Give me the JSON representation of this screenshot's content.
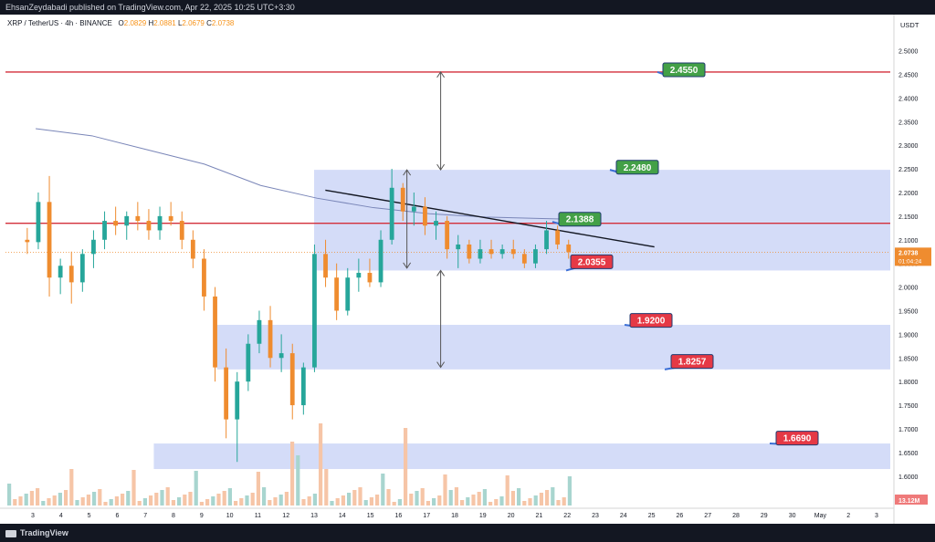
{
  "header": {
    "published_text": "EhsanZeydabadi published on TradingView.com, Apr 22, 2025 10:25 UTC+3:30"
  },
  "footer": {
    "brand": "TradingView"
  },
  "symbol": {
    "name": "XRP / TetherUS · 4h · BINANCE",
    "open_label": "O",
    "open": "2.0829",
    "high_label": "H",
    "high": "2.0881",
    "low_label": "L",
    "low": "2.0679",
    "close_label": "C",
    "close": "2.0738"
  },
  "colors": {
    "up": "#26a69a",
    "down": "#ef8c2f",
    "zone": "#c5d0f5",
    "resistance": "#d32f3a",
    "label_green": "#43a047",
    "label_red": "#e53945",
    "ma": "#7a86b8",
    "trendline": "#131722"
  },
  "chart_data": {
    "type": "candlestick",
    "y_axis_unit": "USDT",
    "ylim": [
      1.56,
      2.56
    ],
    "y_ticks": [
      "2.5000",
      "2.4500",
      "2.4000",
      "2.3500",
      "2.3000",
      "2.2500",
      "2.2000",
      "2.1500",
      "2.1000",
      "2.0500",
      "2.0000",
      "1.9500",
      "1.9000",
      "1.8500",
      "1.8000",
      "1.7500",
      "1.7000",
      "1.6500",
      "1.6000"
    ],
    "x_ticks": [
      "3",
      "4",
      "5",
      "6",
      "7",
      "8",
      "9",
      "10",
      "11",
      "12",
      "13",
      "14",
      "15",
      "16",
      "17",
      "18",
      "19",
      "20",
      "21",
      "22",
      "23",
      "24",
      "25",
      "26",
      "27",
      "28",
      "29",
      "30",
      "May",
      "2",
      "3"
    ],
    "current_price": "2.0738",
    "countdown": "01:04:24",
    "volume_label": "13.12M",
    "grid": false,
    "horizontal_lines": [
      2.455,
      2.135
    ],
    "price_labels": [
      {
        "text": "2.4550",
        "kind": "resistance"
      },
      {
        "text": "2.2480",
        "kind": "resistance"
      },
      {
        "text": "2.1388",
        "kind": "resistance"
      },
      {
        "text": "2.0355",
        "kind": "support"
      },
      {
        "text": "1.9200",
        "kind": "support"
      },
      {
        "text": "1.8257",
        "kind": "support"
      },
      {
        "text": "1.6690",
        "kind": "support"
      }
    ],
    "zones": [
      {
        "top": 2.248,
        "bottom": 2.035
      },
      {
        "top": 1.92,
        "bottom": 1.8257
      },
      {
        "top": 1.669,
        "bottom": 1.615
      }
    ],
    "trendline": {
      "from": [
        13.0,
        2.205
      ],
      "to": [
        25.1,
        2.085
      ]
    },
    "moving_average": [
      [
        2.0,
        2.335
      ],
      [
        4.0,
        2.32
      ],
      [
        6.0,
        2.29
      ],
      [
        8.0,
        2.26
      ],
      [
        10.0,
        2.215
      ],
      [
        12.0,
        2.188
      ],
      [
        14.0,
        2.168
      ],
      [
        16.0,
        2.155
      ],
      [
        18.0,
        2.148
      ],
      [
        20.0,
        2.145
      ],
      [
        22.0,
        2.142
      ]
    ],
    "measure_arrows": [
      {
        "x": 17.5,
        "from": 2.455,
        "to": 2.248
      },
      {
        "x": 16.3,
        "from": 2.248,
        "to": 2.04
      },
      {
        "x": 17.5,
        "from": 2.035,
        "to": 1.83
      }
    ],
    "candles": [
      [
        2.1,
        2.125,
        2.07,
        2.095
      ],
      [
        2.095,
        2.2,
        2.08,
        2.18
      ],
      [
        2.18,
        2.235,
        1.98,
        2.02
      ],
      [
        2.02,
        2.06,
        1.985,
        2.045
      ],
      [
        2.045,
        2.075,
        1.965,
        2.01
      ],
      [
        2.01,
        2.08,
        1.99,
        2.07
      ],
      [
        2.07,
        2.12,
        2.04,
        2.1
      ],
      [
        2.1,
        2.16,
        2.08,
        2.14
      ],
      [
        2.14,
        2.17,
        2.11,
        2.13
      ],
      [
        2.13,
        2.16,
        2.1,
        2.15
      ],
      [
        2.15,
        2.18,
        2.12,
        2.14
      ],
      [
        2.14,
        2.165,
        2.1,
        2.12
      ],
      [
        2.12,
        2.17,
        2.1,
        2.15
      ],
      [
        2.15,
        2.18,
        2.13,
        2.14
      ],
      [
        2.14,
        2.16,
        2.08,
        2.1
      ],
      [
        2.1,
        2.12,
        2.04,
        2.06
      ],
      [
        2.06,
        2.08,
        1.95,
        1.98
      ],
      [
        1.98,
        2.0,
        1.8,
        1.83
      ],
      [
        1.83,
        1.87,
        1.68,
        1.72
      ],
      [
        1.72,
        1.82,
        1.63,
        1.8
      ],
      [
        1.8,
        1.9,
        1.78,
        1.88
      ],
      [
        1.88,
        1.95,
        1.86,
        1.93
      ],
      [
        1.93,
        1.96,
        1.83,
        1.85
      ],
      [
        1.85,
        1.9,
        1.82,
        1.86
      ],
      [
        1.86,
        1.88,
        1.72,
        1.75
      ],
      [
        1.75,
        1.84,
        1.73,
        1.83
      ],
      [
        1.83,
        2.09,
        1.82,
        2.07
      ],
      [
        2.07,
        2.1,
        2.0,
        2.02
      ],
      [
        2.02,
        2.05,
        1.93,
        1.95
      ],
      [
        1.95,
        2.04,
        1.94,
        2.02
      ],
      [
        2.02,
        2.06,
        1.99,
        2.03
      ],
      [
        2.03,
        2.06,
        2.0,
        2.01
      ],
      [
        2.01,
        2.12,
        2.0,
        2.1
      ],
      [
        2.1,
        2.25,
        2.09,
        2.21
      ],
      [
        2.21,
        2.22,
        2.14,
        2.16
      ],
      [
        2.16,
        2.2,
        2.13,
        2.17
      ],
      [
        2.17,
        2.19,
        2.11,
        2.13
      ],
      [
        2.13,
        2.16,
        2.1,
        2.14
      ],
      [
        2.14,
        2.15,
        2.06,
        2.08
      ],
      [
        2.08,
        2.11,
        2.04,
        2.09
      ],
      [
        2.09,
        2.1,
        2.05,
        2.06
      ],
      [
        2.06,
        2.1,
        2.05,
        2.08
      ],
      [
        2.08,
        2.1,
        2.06,
        2.07
      ],
      [
        2.07,
        2.09,
        2.06,
        2.08
      ],
      [
        2.08,
        2.1,
        2.06,
        2.07
      ],
      [
        2.07,
        2.08,
        2.04,
        2.05
      ],
      [
        2.05,
        2.09,
        2.04,
        2.08
      ],
      [
        2.08,
        2.14,
        2.07,
        2.12
      ],
      [
        2.12,
        2.13,
        2.08,
        2.09
      ],
      [
        2.09,
        2.1,
        2.06,
        2.0738
      ]
    ]
  }
}
